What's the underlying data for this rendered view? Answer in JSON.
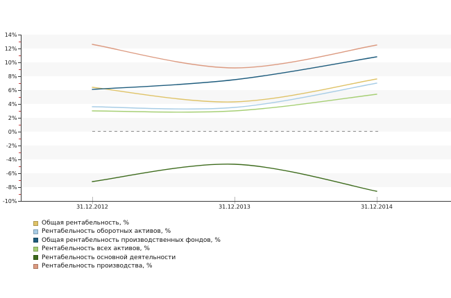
{
  "chart_data": {
    "type": "line",
    "title": "",
    "x_categories": [
      "31.12.2012",
      "31.12.2013",
      "31.12.2014"
    ],
    "y_tick_labels": [
      "14%",
      "12%",
      "10%",
      "8%",
      "6%",
      "4%",
      "2%",
      "0%",
      "-2%",
      "-4%",
      "-6%",
      "-8%",
      "-10%"
    ],
    "ylim": [
      -10,
      14
    ],
    "y_step": 2,
    "y_unit": "%",
    "grid": "striped-horizontal-bands",
    "zero_line": {
      "value": 0,
      "style": "dashed",
      "color": "#8a8a8a"
    },
    "legend_position": "bottom-left",
    "series": [
      {
        "name": "Общая рентабельность, %",
        "color": "#dfc368",
        "values": [
          6.4,
          4.3,
          7.6
        ]
      },
      {
        "name": "Рентабельность оборотных активов, %",
        "color": "#a8cde6",
        "values": [
          3.6,
          3.5,
          7.0
        ]
      },
      {
        "name": "Общая рентабельность производственных фондов, %",
        "color": "#1e5c7d",
        "values": [
          6.1,
          7.5,
          10.8
        ]
      },
      {
        "name": "Рентабельность всех активов, %",
        "color": "#a6cf74",
        "values": [
          3.0,
          3.0,
          5.4
        ]
      },
      {
        "name": "Рентабельность основной деятельности",
        "color": "#3d6b1c",
        "values": [
          -7.2,
          -4.7,
          -8.6
        ]
      },
      {
        "name": "Рентабельность производства, %",
        "color": "#dc9a80",
        "values": [
          12.6,
          9.2,
          12.5
        ]
      }
    ],
    "axis_colors": {
      "axis_line": "#3a3a3a",
      "major_tick": "#3a3a3a",
      "minor_tick": "#c23b3b",
      "x_tick": "#b8b8b8",
      "label_text": "#1a1a1a",
      "stripe_fill": "#f7f7f7"
    }
  }
}
